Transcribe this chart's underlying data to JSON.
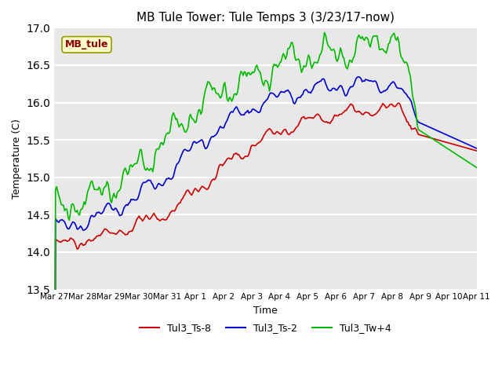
{
  "title": "MB Tule Tower: Tule Temps 3 (3/23/17-now)",
  "xlabel": "Time",
  "ylabel": "Temperature (C)",
  "ylim": [
    13.5,
    17.0
  ],
  "xlim": [
    0,
    360
  ],
  "fig_bg": "#ffffff",
  "plot_bg": "#e8e8e8",
  "grid_color": "#ffffff",
  "series": {
    "Tul3_Ts-8": {
      "color": "#cc0000",
      "lw": 1.2
    },
    "Tul3_Ts-2": {
      "color": "#0000cc",
      "lw": 1.2
    },
    "Tul3_Tw+4": {
      "color": "#00bb00",
      "lw": 1.2
    }
  },
  "x_tick_labels": [
    "Mar 27",
    "Mar 28",
    "Mar 29",
    "Mar 30",
    "Mar 31",
    "Apr 1",
    "Apr 2",
    "Apr 3",
    "Apr 4",
    "Apr 5",
    "Apr 6",
    "Apr 7",
    "Apr 8",
    "Apr 9",
    "Apr 10",
    "Apr 11"
  ],
  "x_tick_positions": [
    0,
    24,
    48,
    72,
    96,
    120,
    144,
    168,
    192,
    216,
    240,
    264,
    288,
    312,
    336,
    360
  ],
  "yticks": [
    13.5,
    14.0,
    14.5,
    15.0,
    15.5,
    16.0,
    16.5,
    17.0
  ],
  "tag_label": "MB_tule",
  "tag_bg": "#ffffcc",
  "tag_border": "#999900"
}
